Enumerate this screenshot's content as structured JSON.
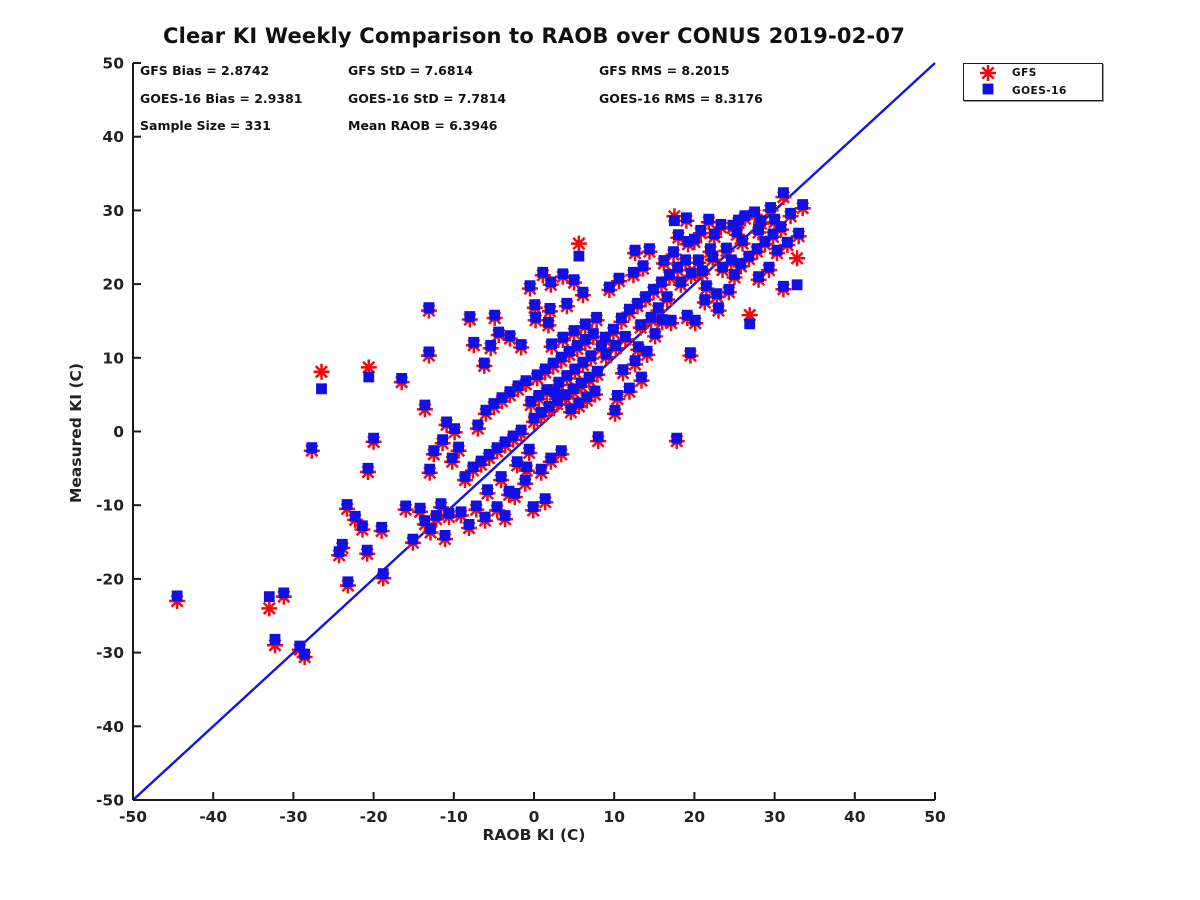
{
  "chart_data": {
    "type": "scatter",
    "title": "Clear KI Weekly Comparison to RAOB over CONUS 2019-02-07",
    "xlabel": "RAOB KI (C)",
    "ylabel": "Measured KI (C)",
    "xlim": [
      -50,
      50
    ],
    "ylim": [
      -50,
      50
    ],
    "xticks": [
      -50,
      -40,
      -30,
      -20,
      -10,
      0,
      10,
      20,
      30,
      40,
      50
    ],
    "yticks": [
      -50,
      -40,
      -30,
      -20,
      -10,
      0,
      10,
      20,
      30,
      40,
      50
    ],
    "grid": false,
    "legend_position": "top-right",
    "colors": {
      "gfs": "#f20a0a",
      "goes16": "#0f0fe6",
      "reference_line": "#1414e0",
      "axis": "#1a1a1a",
      "text": "#111111"
    },
    "stats": {
      "gfs_bias": "GFS Bias = 2.8742",
      "gfs_std": "GFS StD = 7.6814",
      "gfs_rms": "GFS RMS = 8.2015",
      "goes_bias": "GOES-16 Bias = 2.9381",
      "goes_std": "GOES-16 StD = 7.7814",
      "goes_rms": "GOES-16 RMS = 8.3176",
      "sample_size": "Sample Size = 331",
      "mean_raob": "Mean RAOB = 6.3946"
    },
    "legend": [
      {
        "label": "GFS",
        "marker": "asterisk"
      },
      {
        "label": "GOES-16",
        "marker": "square"
      }
    ],
    "reference_line": {
      "from": [
        -50,
        -50
      ],
      "to": [
        50,
        50
      ]
    },
    "series_note": "points are [raob_x, gfs_y, goes16_y]",
    "points": [
      [
        -44.5,
        -23.0,
        -22.3
      ],
      [
        -33.0,
        -24.0,
        -22.4
      ],
      [
        -31.2,
        -22.4,
        -21.9
      ],
      [
        -32.3,
        -29.0,
        -28.2
      ],
      [
        -29.2,
        -29.6,
        -29.1
      ],
      [
        -28.6,
        -30.6,
        -30.2
      ],
      [
        -27.7,
        -2.6,
        -2.2
      ],
      [
        -26.5,
        8.1,
        5.8
      ],
      [
        -23.2,
        -20.9,
        -20.4
      ],
      [
        -24.3,
        -16.8,
        -16.3
      ],
      [
        -20.8,
        -16.6,
        -16.1
      ],
      [
        -18.8,
        -19.9,
        -19.3
      ],
      [
        -20.6,
        8.7,
        7.4
      ],
      [
        -20.0,
        -1.4,
        -0.9
      ],
      [
        -20.7,
        -5.5,
        -5.0
      ],
      [
        -23.3,
        -10.5,
        -9.9
      ],
      [
        -22.3,
        -12.0,
        -11.5
      ],
      [
        -21.4,
        -13.3,
        -12.8
      ],
      [
        -23.9,
        -15.8,
        -15.3
      ],
      [
        -19.0,
        -13.5,
        -13.0
      ],
      [
        -16.5,
        6.7,
        7.2
      ],
      [
        -16.0,
        -10.6,
        -10.1
      ],
      [
        -15.1,
        -15.1,
        -14.6
      ],
      [
        -13.6,
        3.0,
        3.6
      ],
      [
        -13.1,
        16.4,
        16.8
      ],
      [
        -13.1,
        10.3,
        10.8
      ],
      [
        -12.9,
        -13.7,
        -13.2
      ],
      [
        -14.2,
        -10.9,
        -10.4
      ],
      [
        -13.6,
        -12.6,
        -12.1
      ],
      [
        -11.6,
        -10.3,
        -9.8
      ],
      [
        -10.6,
        -11.6,
        -11.1
      ],
      [
        -11.1,
        -14.6,
        -14.1
      ],
      [
        -12.2,
        -11.9,
        -11.4
      ],
      [
        -12.5,
        -3.1,
        -2.6
      ],
      [
        -11.4,
        -1.6,
        -1.1
      ],
      [
        -10.2,
        -4.1,
        -3.6
      ],
      [
        -9.4,
        -2.6,
        -2.1
      ],
      [
        -10.9,
        0.9,
        1.3
      ],
      [
        -9.9,
        -0.1,
        0.4
      ],
      [
        -13.0,
        -5.6,
        -5.1
      ],
      [
        -9.1,
        -11.4,
        -10.9
      ],
      [
        -7.2,
        -10.6,
        -10.1
      ],
      [
        -6.1,
        -12.1,
        -11.6
      ],
      [
        -4.6,
        -10.7,
        -10.2
      ],
      [
        -3.6,
        -11.9,
        -11.4
      ],
      [
        -8.1,
        -13.1,
        -12.6
      ],
      [
        -8.0,
        15.2,
        15.6
      ],
      [
        -4.9,
        15.4,
        15.8
      ],
      [
        -7.5,
        11.7,
        12.1
      ],
      [
        -6.2,
        8.9,
        9.3
      ],
      [
        -5.4,
        11.3,
        11.7
      ],
      [
        -4.4,
        13.1,
        13.5
      ],
      [
        -3.0,
        12.6,
        13.0
      ],
      [
        -1.6,
        11.4,
        11.8
      ],
      [
        -8.6,
        -6.6,
        -6.1
      ],
      [
        -7.6,
        -5.3,
        -4.8
      ],
      [
        -6.6,
        -4.5,
        -4.0
      ],
      [
        -5.6,
        -3.6,
        -3.1
      ],
      [
        -4.6,
        -2.7,
        -2.2
      ],
      [
        -3.6,
        -1.9,
        -1.4
      ],
      [
        -2.6,
        -1.1,
        -0.6
      ],
      [
        -1.6,
        -0.3,
        0.2
      ],
      [
        -7.0,
        0.4,
        0.9
      ],
      [
        -6.0,
        2.4,
        2.9
      ],
      [
        -5.0,
        3.3,
        3.8
      ],
      [
        -4.0,
        4.1,
        4.6
      ],
      [
        -3.0,
        4.9,
        5.4
      ],
      [
        -2.0,
        5.7,
        6.2
      ],
      [
        -1.0,
        6.4,
        6.9
      ],
      [
        -5.8,
        -8.4,
        -7.9
      ],
      [
        -3.1,
        -8.6,
        -8.1
      ],
      [
        -2.4,
        -8.9,
        -8.4
      ],
      [
        -1.1,
        -7.1,
        -6.6
      ],
      [
        -0.1,
        -10.7,
        -10.2
      ],
      [
        -4.1,
        -6.6,
        -6.1
      ],
      [
        -2.1,
        -4.6,
        -4.1
      ],
      [
        -0.6,
        -2.9,
        -2.4
      ],
      [
        -0.9,
        -5.3,
        -4.8
      ],
      [
        0.0,
        1.3,
        1.8
      ],
      [
        0.9,
        2.1,
        2.6
      ],
      [
        1.9,
        2.9,
        3.4
      ],
      [
        2.9,
        3.7,
        4.2
      ],
      [
        3.9,
        4.5,
        5.0
      ],
      [
        4.9,
        5.3,
        5.8
      ],
      [
        5.9,
        6.1,
        6.6
      ],
      [
        6.9,
        6.9,
        7.4
      ],
      [
        7.9,
        7.7,
        8.2
      ],
      [
        0.4,
        7.2,
        7.7
      ],
      [
        1.4,
        8.0,
        8.5
      ],
      [
        2.4,
        8.8,
        9.3
      ],
      [
        3.4,
        9.6,
        10.1
      ],
      [
        4.4,
        10.4,
        10.9
      ],
      [
        5.4,
        11.2,
        11.7
      ],
      [
        6.4,
        12.0,
        12.5
      ],
      [
        7.4,
        12.8,
        13.3
      ],
      [
        0.2,
        15.1,
        15.5
      ],
      [
        1.8,
        14.4,
        14.8
      ],
      [
        0.9,
        -5.6,
        -5.1
      ],
      [
        2.1,
        -4.1,
        -3.6
      ],
      [
        1.4,
        -9.6,
        -9.1
      ],
      [
        3.4,
        -3.1,
        -2.6
      ],
      [
        2.6,
        5.0,
        5.4
      ],
      [
        3.1,
        6.3,
        6.7
      ],
      [
        4.1,
        7.2,
        7.6
      ],
      [
        5.1,
        8.1,
        8.5
      ],
      [
        6.1,
        9.0,
        9.4
      ],
      [
        7.1,
        9.9,
        10.3
      ],
      [
        4.6,
        2.6,
        3.1
      ],
      [
        5.6,
        3.4,
        3.9
      ],
      [
        6.6,
        4.2,
        4.7
      ],
      [
        7.6,
        5.0,
        5.5
      ],
      [
        0.6,
        4.4,
        4.9
      ],
      [
        1.6,
        5.2,
        5.7
      ],
      [
        -0.4,
        3.6,
        4.1
      ],
      [
        2.2,
        11.5,
        11.9
      ],
      [
        3.6,
        12.4,
        12.8
      ],
      [
        5.0,
        13.3,
        13.7
      ],
      [
        6.4,
        14.2,
        14.6
      ],
      [
        7.8,
        15.1,
        15.5
      ],
      [
        -0.5,
        19.4,
        19.8
      ],
      [
        1.1,
        21.2,
        21.6
      ],
      [
        2.1,
        19.9,
        20.3
      ],
      [
        3.6,
        21.0,
        21.4
      ],
      [
        5.0,
        20.2,
        20.6
      ],
      [
        5.6,
        25.5,
        23.8
      ],
      [
        6.1,
        18.5,
        18.9
      ],
      [
        4.1,
        17.0,
        17.4
      ],
      [
        2.0,
        16.3,
        16.7
      ],
      [
        0.1,
        16.8,
        17.2
      ],
      [
        8.0,
        -1.3,
        -0.7
      ],
      [
        17.8,
        -1.3,
        -0.9
      ],
      [
        19.5,
        10.3,
        10.7
      ],
      [
        8.9,
        12.3,
        12.8
      ],
      [
        9.9,
        13.4,
        13.9
      ],
      [
        10.9,
        14.9,
        15.4
      ],
      [
        11.9,
        16.1,
        16.6
      ],
      [
        12.9,
        17.0,
        17.4
      ],
      [
        13.9,
        17.9,
        18.3
      ],
      [
        14.9,
        18.9,
        19.3
      ],
      [
        15.9,
        19.9,
        20.3
      ],
      [
        16.9,
        20.9,
        21.3
      ],
      [
        17.9,
        21.9,
        22.3
      ],
      [
        18.9,
        22.9,
        23.3
      ],
      [
        9.4,
        19.2,
        19.6
      ],
      [
        10.6,
        20.4,
        20.8
      ],
      [
        12.4,
        21.2,
        21.6
      ],
      [
        13.6,
        22.1,
        22.5
      ],
      [
        8.4,
        11.2,
        11.6
      ],
      [
        9.0,
        10.1,
        10.5
      ],
      [
        10.2,
        11.3,
        11.7
      ],
      [
        11.4,
        12.5,
        12.9
      ],
      [
        13.3,
        14.1,
        14.5
      ],
      [
        14.6,
        15.1,
        15.5
      ],
      [
        15.5,
        16.4,
        16.8
      ],
      [
        16.6,
        17.9,
        18.3
      ],
      [
        18.3,
        19.9,
        20.3
      ],
      [
        19.6,
        21.1,
        21.5
      ],
      [
        10.4,
        4.4,
        4.9
      ],
      [
        11.9,
        5.4,
        5.9
      ],
      [
        13.4,
        6.9,
        7.4
      ],
      [
        11.1,
        7.9,
        8.4
      ],
      [
        12.6,
        9.1,
        9.6
      ],
      [
        14.1,
        10.4,
        10.9
      ],
      [
        10.1,
        2.4,
        2.9
      ],
      [
        12.6,
        24.2,
        24.6
      ],
      [
        14.4,
        24.4,
        24.8
      ],
      [
        13.0,
        11.1,
        11.5
      ],
      [
        15.1,
        12.9,
        13.3
      ],
      [
        17.1,
        14.7,
        15.1
      ],
      [
        19.1,
        15.4,
        15.8
      ],
      [
        20.1,
        14.7,
        15.1
      ],
      [
        16.2,
        22.8,
        23.2
      ],
      [
        17.4,
        24.0,
        24.4
      ],
      [
        19.2,
        25.4,
        25.8
      ],
      [
        18.0,
        26.3,
        26.7
      ],
      [
        16.0,
        14.8,
        15.2
      ],
      [
        17.5,
        29.2,
        28.6
      ],
      [
        19.0,
        28.6,
        29.0
      ],
      [
        31.1,
        31.8,
        32.4
      ],
      [
        29.5,
        30.0,
        30.4
      ],
      [
        33.5,
        30.3,
        30.8
      ],
      [
        27.5,
        29.4,
        29.8
      ],
      [
        25.5,
        28.3,
        28.7
      ],
      [
        22.5,
        26.4,
        26.8
      ],
      [
        24.0,
        24.5,
        24.9
      ],
      [
        26.0,
        25.5,
        25.9
      ],
      [
        28.0,
        27.0,
        27.4
      ],
      [
        30.0,
        28.4,
        28.8
      ],
      [
        20.5,
        22.9,
        23.3
      ],
      [
        21.0,
        21.4,
        21.8
      ],
      [
        22.0,
        24.4,
        24.8
      ],
      [
        23.5,
        21.9,
        22.3
      ],
      [
        25.0,
        20.9,
        21.3
      ],
      [
        20.0,
        25.7,
        26.1
      ],
      [
        21.5,
        19.4,
        19.8
      ],
      [
        22.8,
        18.3,
        18.7
      ],
      [
        24.3,
        18.9,
        19.3
      ],
      [
        25.8,
        22.4,
        22.8
      ],
      [
        26.8,
        23.4,
        23.8
      ],
      [
        27.8,
        24.4,
        24.8
      ],
      [
        28.8,
        25.4,
        25.8
      ],
      [
        29.8,
        26.4,
        26.8
      ],
      [
        30.8,
        27.4,
        27.8
      ],
      [
        26.9,
        15.8,
        14.6
      ],
      [
        31.1,
        19.3,
        19.7
      ],
      [
        32.8,
        23.5,
        19.9
      ],
      [
        23.0,
        16.4,
        16.8
      ],
      [
        21.3,
        17.5,
        17.9
      ],
      [
        24.6,
        22.9,
        23.3
      ],
      [
        25.3,
        26.7,
        27.1
      ],
      [
        23.3,
        27.7,
        28.1
      ],
      [
        21.8,
        28.4,
        28.8
      ],
      [
        26.3,
        28.9,
        29.3
      ],
      [
        28.3,
        28.2,
        28.6
      ],
      [
        32.0,
        29.2,
        29.6
      ],
      [
        30.3,
        24.2,
        24.6
      ],
      [
        31.6,
        25.3,
        25.7
      ],
      [
        33.0,
        26.5,
        26.9
      ],
      [
        20.8,
        26.9,
        27.3
      ],
      [
        22.3,
        23.3,
        23.7
      ],
      [
        24.8,
        27.6,
        28.0
      ],
      [
        29.3,
        21.9,
        22.3
      ],
      [
        28.0,
        20.6,
        21.0
      ]
    ]
  }
}
